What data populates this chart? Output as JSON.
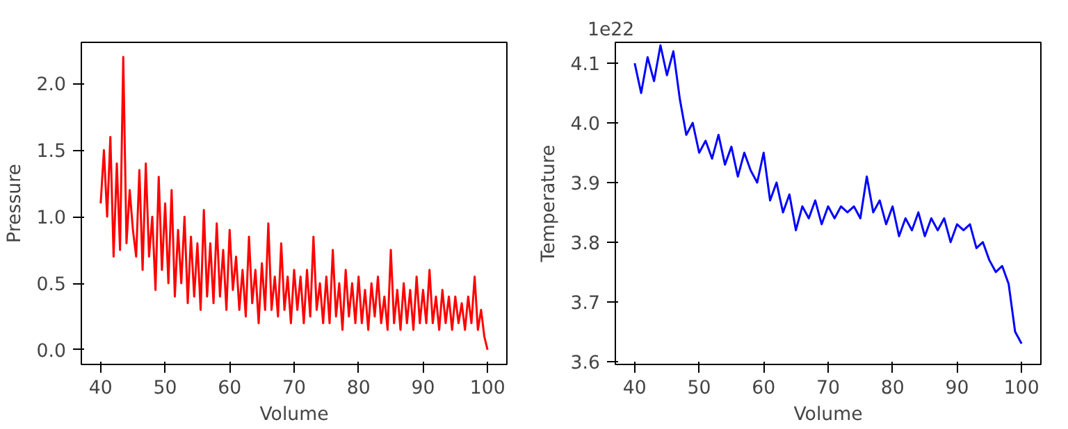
{
  "chart_data": [
    {
      "type": "line",
      "xlabel": "Volume",
      "ylabel": "Pressure",
      "xlim": [
        37,
        103
      ],
      "ylim": [
        -0.11,
        2.31
      ],
      "xticks": [
        40,
        50,
        60,
        70,
        80,
        90,
        100
      ],
      "yticks": [
        {
          "value": 0,
          "label": "0.0"
        },
        {
          "value": 0.5,
          "label": "0.5"
        },
        {
          "value": 1,
          "label": "1.0"
        },
        {
          "value": 1.5,
          "label": "1.5"
        },
        {
          "value": 2,
          "label": "2.0"
        }
      ],
      "grid": false,
      "x": [
        40,
        40.5,
        41,
        41.5,
        42,
        42.5,
        43,
        43.5,
        44,
        44.5,
        45,
        45.5,
        46,
        46.5,
        47,
        47.5,
        48,
        48.5,
        49,
        49.5,
        50,
        50.5,
        51,
        51.5,
        52,
        52.5,
        53,
        53.5,
        54,
        54.5,
        55,
        55.5,
        56,
        56.5,
        57,
        57.5,
        58,
        58.5,
        59,
        59.5,
        60,
        60.5,
        61,
        61.5,
        62,
        62.5,
        63,
        63.5,
        64,
        64.5,
        65,
        65.5,
        66,
        66.5,
        67,
        67.5,
        68,
        68.5,
        69,
        69.5,
        70,
        70.5,
        71,
        71.5,
        72,
        72.5,
        73,
        73.5,
        74,
        74.5,
        75,
        75.5,
        76,
        76.5,
        77,
        77.5,
        78,
        78.5,
        79,
        79.5,
        80,
        80.5,
        81,
        81.5,
        82,
        82.5,
        83,
        83.5,
        84,
        84.5,
        85,
        85.5,
        86,
        86.5,
        87,
        87.5,
        88,
        88.5,
        89,
        89.5,
        90,
        90.5,
        91,
        91.5,
        92,
        92.5,
        93,
        93.5,
        94,
        94.5,
        95,
        95.5,
        96,
        96.5,
        97,
        97.5,
        98,
        98.5,
        99,
        99.5,
        100
      ],
      "series": [
        {
          "color": "#ff0000",
          "values": [
            1.1,
            1.5,
            1.0,
            1.6,
            0.7,
            1.4,
            0.75,
            2.2,
            0.8,
            1.2,
            0.9,
            0.7,
            1.35,
            0.6,
            1.4,
            0.7,
            1.0,
            0.45,
            1.3,
            0.6,
            1.1,
            0.5,
            1.2,
            0.4,
            0.9,
            0.5,
            1.0,
            0.35,
            0.85,
            0.4,
            0.8,
            0.3,
            1.05,
            0.4,
            0.8,
            0.35,
            0.95,
            0.4,
            0.75,
            0.3,
            0.9,
            0.45,
            0.7,
            0.3,
            0.6,
            0.25,
            0.85,
            0.35,
            0.6,
            0.2,
            0.65,
            0.3,
            0.95,
            0.3,
            0.55,
            0.25,
            0.8,
            0.3,
            0.55,
            0.2,
            0.6,
            0.3,
            0.55,
            0.2,
            0.6,
            0.25,
            0.85,
            0.3,
            0.5,
            0.2,
            0.55,
            0.2,
            0.75,
            0.25,
            0.5,
            0.15,
            0.6,
            0.25,
            0.5,
            0.2,
            0.55,
            0.2,
            0.45,
            0.15,
            0.5,
            0.25,
            0.55,
            0.2,
            0.4,
            0.15,
            0.75,
            0.2,
            0.45,
            0.15,
            0.5,
            0.2,
            0.45,
            0.15,
            0.55,
            0.2,
            0.45,
            0.2,
            0.6,
            0.2,
            0.4,
            0.15,
            0.45,
            0.2,
            0.4,
            0.15,
            0.4,
            0.2,
            0.35,
            0.15,
            0.4,
            0.2,
            0.55,
            0.15,
            0.3,
            0.1,
            0.0
          ]
        }
      ]
    },
    {
      "type": "line",
      "xlabel": "Volume",
      "ylabel": "Temperature",
      "annotations": [
        "1e22"
      ],
      "xlim": [
        37,
        103
      ],
      "ylim": [
        3.595,
        4.135
      ],
      "xticks": [
        40,
        50,
        60,
        70,
        80,
        90,
        100
      ],
      "yticks": [
        3.6,
        3.7,
        3.8,
        3.9,
        {
          "value": 4,
          "label": "4.0"
        },
        4.1
      ],
      "grid": false,
      "x": [
        40,
        41,
        42,
        43,
        44,
        45,
        46,
        47,
        48,
        49,
        50,
        51,
        52,
        53,
        54,
        55,
        56,
        57,
        58,
        59,
        60,
        61,
        62,
        63,
        64,
        65,
        66,
        67,
        68,
        69,
        70,
        71,
        72,
        73,
        74,
        75,
        76,
        77,
        78,
        79,
        80,
        81,
        82,
        83,
        84,
        85,
        86,
        87,
        88,
        89,
        90,
        91,
        92,
        93,
        94,
        95,
        96,
        97,
        98,
        99,
        100
      ],
      "series": [
        {
          "color": "#0000ff",
          "values": [
            4.1,
            4.05,
            4.11,
            4.07,
            4.13,
            4.08,
            4.12,
            4.04,
            3.98,
            4.0,
            3.95,
            3.97,
            3.94,
            3.98,
            3.93,
            3.96,
            3.91,
            3.95,
            3.92,
            3.9,
            3.95,
            3.87,
            3.9,
            3.85,
            3.88,
            3.82,
            3.86,
            3.84,
            3.87,
            3.83,
            3.86,
            3.84,
            3.86,
            3.85,
            3.86,
            3.84,
            3.91,
            3.85,
            3.87,
            3.83,
            3.86,
            3.81,
            3.84,
            3.82,
            3.85,
            3.81,
            3.84,
            3.82,
            3.84,
            3.8,
            3.83,
            3.82,
            3.83,
            3.79,
            3.8,
            3.77,
            3.75,
            3.76,
            3.73,
            3.65,
            3.63
          ]
        }
      ]
    }
  ]
}
